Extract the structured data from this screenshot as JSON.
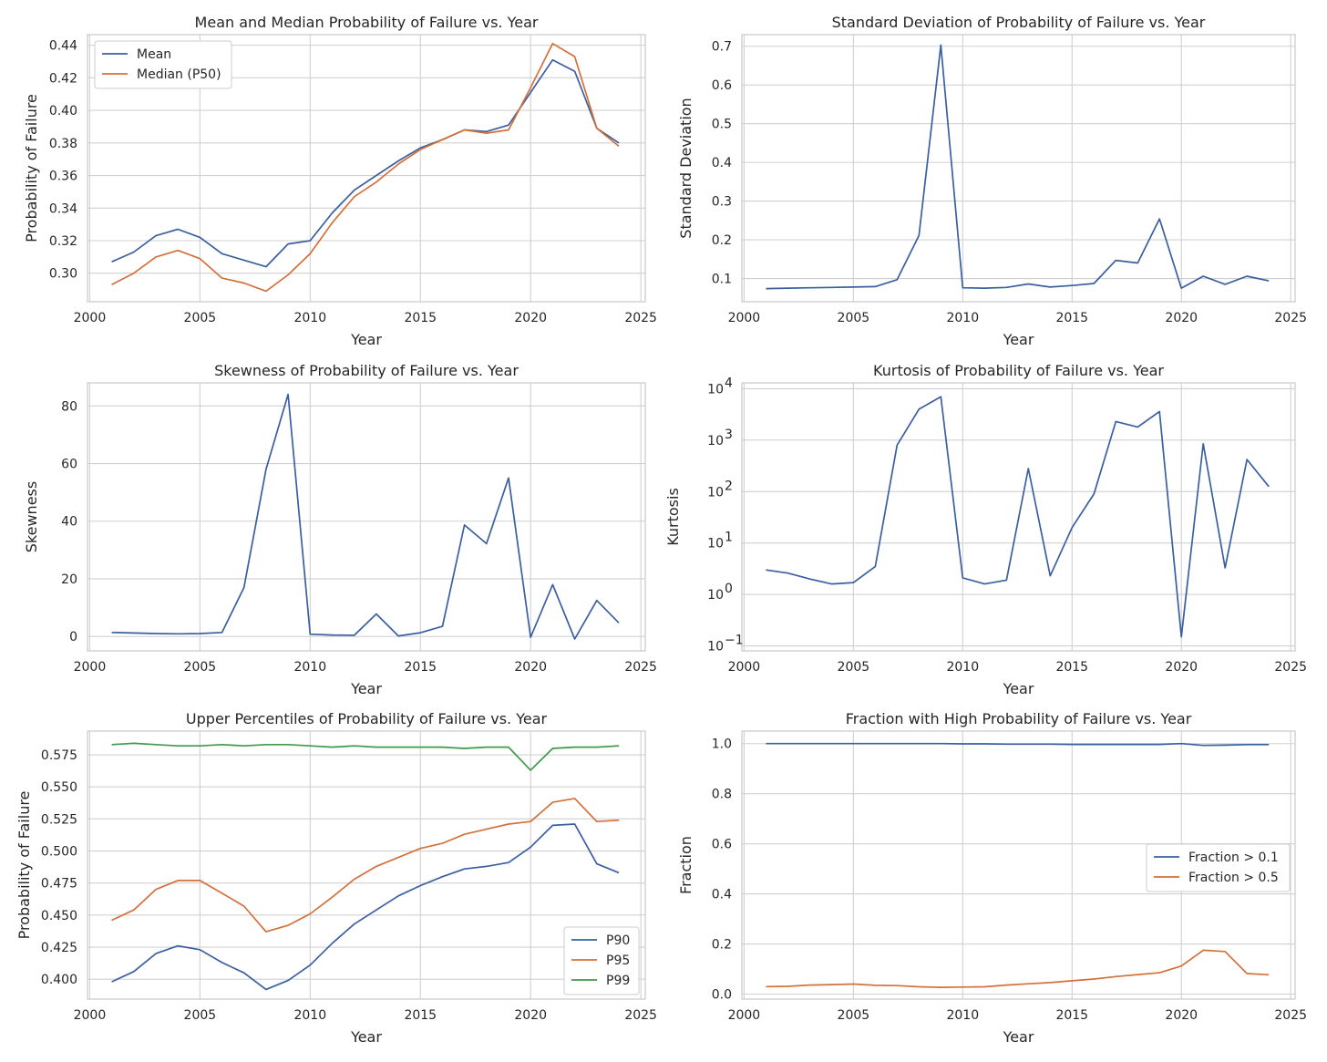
{
  "chart_data": [
    {
      "type": "line",
      "title": "Mean and Median Probability of Failure vs. Year",
      "xlabel": "Year",
      "ylabel": "Probability of Failure",
      "xlim": [
        1999.9,
        2025.2
      ],
      "ylim": [
        0.2825,
        0.4465
      ],
      "xticks": [
        2000,
        2005,
        2010,
        2015,
        2020,
        2025
      ],
      "xtick_labels": [
        "2000",
        "2005",
        "2010",
        "2015",
        "2020",
        "2025"
      ],
      "yticks": [
        0.3,
        0.32,
        0.34,
        0.36,
        0.38,
        0.4,
        0.42,
        0.44
      ],
      "ytick_labels": [
        "0.30",
        "0.32",
        "0.34",
        "0.36",
        "0.38",
        "0.40",
        "0.42",
        "0.44"
      ],
      "yscale": "linear",
      "legend": "top-left",
      "grid": true,
      "x": [
        2001,
        2002,
        2003,
        2004,
        2005,
        2006,
        2007,
        2008,
        2009,
        2010,
        2011,
        2012,
        2013,
        2014,
        2015,
        2016,
        2017,
        2018,
        2019,
        2020,
        2021,
        2022,
        2023,
        2024
      ],
      "series": [
        {
          "name": "Mean",
          "color": "#3a5fa0",
          "values": [
            0.307,
            0.313,
            0.323,
            0.327,
            0.322,
            0.312,
            0.308,
            0.304,
            0.318,
            0.32,
            0.337,
            0.351,
            0.36,
            0.369,
            0.377,
            0.382,
            0.388,
            0.387,
            0.391,
            0.411,
            0.431,
            0.424,
            0.389,
            0.38
          ]
        },
        {
          "name": "Median (P50)",
          "color": "#d4703a",
          "values": [
            0.293,
            0.3,
            0.31,
            0.314,
            0.309,
            0.297,
            0.294,
            0.289,
            0.299,
            0.312,
            0.331,
            0.347,
            0.356,
            0.367,
            0.376,
            0.382,
            0.388,
            0.386,
            0.388,
            0.414,
            0.441,
            0.433,
            0.389,
            0.378
          ]
        }
      ]
    },
    {
      "type": "line",
      "title": "Standard Deviation of Probability of Failure vs. Year",
      "xlabel": "Year",
      "ylabel": "Standard Deviation",
      "xlim": [
        1999.9,
        2025.2
      ],
      "ylim": [
        0.04,
        0.73
      ],
      "xticks": [
        2000,
        2005,
        2010,
        2015,
        2020,
        2025
      ],
      "xtick_labels": [
        "2000",
        "2005",
        "2010",
        "2015",
        "2020",
        "2025"
      ],
      "yticks": [
        0.1,
        0.2,
        0.3,
        0.4,
        0.5,
        0.6,
        0.7
      ],
      "ytick_labels": [
        "0.1",
        "0.2",
        "0.3",
        "0.4",
        "0.5",
        "0.6",
        "0.7"
      ],
      "yscale": "linear",
      "legend": "none",
      "grid": true,
      "x": [
        2001,
        2002,
        2003,
        2004,
        2005,
        2006,
        2007,
        2008,
        2009,
        2010,
        2011,
        2012,
        2013,
        2014,
        2015,
        2016,
        2017,
        2018,
        2019,
        2020,
        2021,
        2022,
        2023,
        2024
      ],
      "series": [
        {
          "name": "Std",
          "color": "#3a5fa0",
          "values": [
            0.074,
            0.075,
            0.076,
            0.077,
            0.078,
            0.079,
            0.097,
            0.211,
            0.703,
            0.076,
            0.075,
            0.077,
            0.086,
            0.078,
            0.082,
            0.087,
            0.147,
            0.14,
            0.254,
            0.075,
            0.106,
            0.085,
            0.106,
            0.094
          ]
        }
      ]
    },
    {
      "type": "line",
      "title": "Skewness of Probability of Failure vs. Year",
      "xlabel": "Year",
      "ylabel": "Skewness",
      "xlim": [
        1999.9,
        2025.2
      ],
      "ylim": [
        -5,
        88
      ],
      "xticks": [
        2000,
        2005,
        2010,
        2015,
        2020,
        2025
      ],
      "xtick_labels": [
        "2000",
        "2005",
        "2010",
        "2015",
        "2020",
        "2025"
      ],
      "yticks": [
        0,
        20,
        40,
        60,
        80
      ],
      "ytick_labels": [
        "0",
        "20",
        "40",
        "60",
        "80"
      ],
      "yscale": "linear",
      "legend": "none",
      "grid": true,
      "x": [
        2001,
        2002,
        2003,
        2004,
        2005,
        2006,
        2007,
        2008,
        2009,
        2010,
        2011,
        2012,
        2013,
        2014,
        2015,
        2016,
        2017,
        2018,
        2019,
        2020,
        2021,
        2022,
        2023,
        2024
      ],
      "series": [
        {
          "name": "Skewness",
          "color": "#3a5fa0",
          "values": [
            1.4,
            1.2,
            1.0,
            0.9,
            1.0,
            1.4,
            17.0,
            58.0,
            84.0,
            0.8,
            0.5,
            0.4,
            7.8,
            0.2,
            1.3,
            3.5,
            38.7,
            32.2,
            55.0,
            -0.3,
            18.0,
            -0.9,
            12.5,
            4.7
          ]
        }
      ]
    },
    {
      "type": "line",
      "title": "Kurtosis of Probability of Failure vs. Year",
      "xlabel": "Year",
      "ylabel": "Kurtosis",
      "xlim": [
        1999.9,
        2025.2
      ],
      "ylim": [
        0.08,
        13000
      ],
      "xticks": [
        2000,
        2005,
        2010,
        2015,
        2020,
        2025
      ],
      "xtick_labels": [
        "2000",
        "2005",
        "2010",
        "2015",
        "2020",
        "2025"
      ],
      "yticks": [
        0.1,
        1,
        10,
        100,
        1000,
        10000
      ],
      "ytick_labels": [
        [
          "10",
          "−1"
        ],
        [
          "10",
          "0"
        ],
        [
          "10",
          "1"
        ],
        [
          "10",
          "2"
        ],
        [
          "10",
          "3"
        ],
        [
          "10",
          "4"
        ]
      ],
      "yscale": "log",
      "legend": "none",
      "grid": true,
      "x": [
        2001,
        2002,
        2003,
        2004,
        2005,
        2006,
        2007,
        2008,
        2009,
        2010,
        2011,
        2012,
        2013,
        2014,
        2015,
        2016,
        2017,
        2018,
        2019,
        2020,
        2021,
        2022,
        2023,
        2024
      ],
      "series": [
        {
          "name": "Kurtosis",
          "color": "#3a5fa0",
          "values": [
            3.0,
            2.6,
            2.0,
            1.6,
            1.7,
            3.5,
            800,
            4000,
            7000,
            2.1,
            1.6,
            1.9,
            280,
            2.3,
            20,
            90,
            2300,
            1800,
            3600,
            0.15,
            850,
            3.3,
            420,
            125
          ]
        }
      ]
    },
    {
      "type": "line",
      "title": "Upper Percentiles of Probability of Failure vs. Year",
      "xlabel": "Year",
      "ylabel": "Probability of Failure",
      "xlim": [
        1999.9,
        2025.2
      ],
      "ylim": [
        0.3845,
        0.5935
      ],
      "xticks": [
        2000,
        2005,
        2010,
        2015,
        2020,
        2025
      ],
      "xtick_labels": [
        "2000",
        "2005",
        "2010",
        "2015",
        "2020",
        "2025"
      ],
      "yticks": [
        0.4,
        0.425,
        0.45,
        0.475,
        0.5,
        0.525,
        0.55,
        0.575
      ],
      "ytick_labels": [
        "0.400",
        "0.425",
        "0.450",
        "0.475",
        "0.500",
        "0.525",
        "0.550",
        "0.575"
      ],
      "yscale": "linear",
      "legend": "bottom-right",
      "grid": true,
      "x": [
        2001,
        2002,
        2003,
        2004,
        2005,
        2006,
        2007,
        2008,
        2009,
        2010,
        2011,
        2012,
        2013,
        2014,
        2015,
        2016,
        2017,
        2018,
        2019,
        2020,
        2021,
        2022,
        2023,
        2024
      ],
      "series": [
        {
          "name": "P90",
          "color": "#3a5fa0",
          "values": [
            0.398,
            0.406,
            0.42,
            0.426,
            0.423,
            0.413,
            0.405,
            0.392,
            0.399,
            0.411,
            0.428,
            0.443,
            0.454,
            0.465,
            0.473,
            0.48,
            0.486,
            0.488,
            0.491,
            0.503,
            0.52,
            0.521,
            0.49,
            0.483
          ]
        },
        {
          "name": "P95",
          "color": "#d4703a",
          "values": [
            0.446,
            0.454,
            0.47,
            0.477,
            0.477,
            0.467,
            0.457,
            0.437,
            0.442,
            0.451,
            0.464,
            0.478,
            0.488,
            0.495,
            0.502,
            0.506,
            0.513,
            0.517,
            0.521,
            0.523,
            0.538,
            0.541,
            0.523,
            0.524
          ]
        },
        {
          "name": "P99",
          "color": "#3e9a4a",
          "values": [
            0.583,
            0.584,
            0.583,
            0.582,
            0.582,
            0.583,
            0.582,
            0.583,
            0.583,
            0.582,
            0.581,
            0.582,
            0.581,
            0.581,
            0.581,
            0.581,
            0.58,
            0.581,
            0.581,
            0.563,
            0.58,
            0.581,
            0.581,
            0.582
          ]
        }
      ]
    },
    {
      "type": "line",
      "title": "Fraction with High Probability of Failure vs. Year",
      "xlabel": "Year",
      "ylabel": "Fraction",
      "xlim": [
        1999.9,
        2025.2
      ],
      "ylim": [
        -0.02,
        1.05
      ],
      "xticks": [
        2000,
        2005,
        2010,
        2015,
        2020,
        2025
      ],
      "xtick_labels": [
        "2000",
        "2005",
        "2010",
        "2015",
        "2020",
        "2025"
      ],
      "yticks": [
        0.0,
        0.2,
        0.4,
        0.6,
        0.8,
        1.0
      ],
      "ytick_labels": [
        "0.0",
        "0.2",
        "0.4",
        "0.6",
        "0.8",
        "1.0"
      ],
      "yscale": "linear",
      "legend": "center-right",
      "grid": true,
      "x": [
        2001,
        2002,
        2003,
        2004,
        2005,
        2006,
        2007,
        2008,
        2009,
        2010,
        2011,
        2012,
        2013,
        2014,
        2015,
        2016,
        2017,
        2018,
        2019,
        2020,
        2021,
        2022,
        2023,
        2024
      ],
      "series": [
        {
          "name": "Fraction > 0.1",
          "color": "#3a5fa0",
          "values": [
            1.0,
            1.0,
            1.0,
            1.0,
            1.0,
            1.0,
            1.0,
            1.0,
            1.0,
            0.999,
            0.999,
            0.998,
            0.998,
            0.998,
            0.997,
            0.997,
            0.997,
            0.997,
            0.997,
            1.0,
            0.993,
            0.994,
            0.996,
            0.996
          ]
        },
        {
          "name": "Fraction > 0.5",
          "color": "#d4703a",
          "values": [
            0.03,
            0.031,
            0.036,
            0.038,
            0.04,
            0.035,
            0.034,
            0.029,
            0.027,
            0.028,
            0.029,
            0.036,
            0.041,
            0.046,
            0.053,
            0.06,
            0.07,
            0.078,
            0.085,
            0.112,
            0.175,
            0.17,
            0.082,
            0.077
          ]
        }
      ]
    }
  ]
}
